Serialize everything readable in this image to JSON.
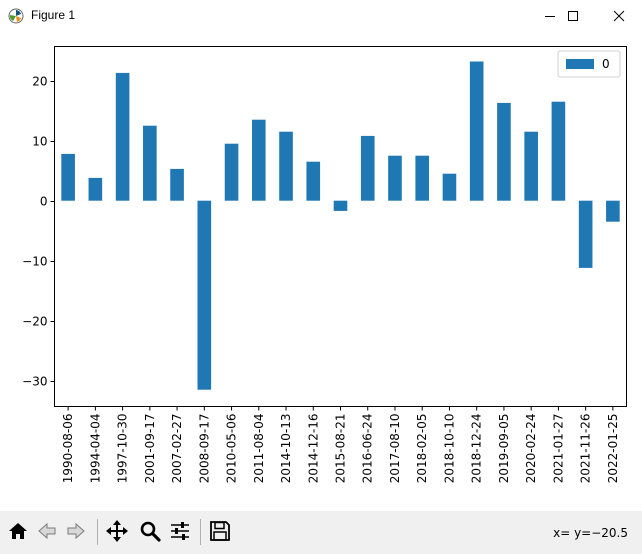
{
  "window": {
    "title": "Figure 1"
  },
  "toolbar": {
    "buttons": [
      {
        "name": "home-button",
        "icon": "home-icon"
      },
      {
        "name": "back-button",
        "icon": "back-arrow-icon"
      },
      {
        "name": "forward-button",
        "icon": "forward-arrow-icon"
      },
      {
        "name": "pan-button",
        "icon": "move-icon"
      },
      {
        "name": "zoom-button",
        "icon": "magnifier-icon"
      },
      {
        "name": "configure-subplots-button",
        "icon": "sliders-icon"
      },
      {
        "name": "save-button",
        "icon": "floppy-disk-icon"
      }
    ],
    "coords_text": "x= y=−20.5"
  },
  "colors": {
    "bar": "#1f77b4",
    "axis": "#000000",
    "background": "#ffffff",
    "toolbar": "#f0f0f0"
  },
  "chart_data": {
    "type": "bar",
    "categories": [
      "1990-08-06",
      "1994-04-04",
      "1997-10-30",
      "2001-09-17",
      "2007-02-27",
      "2008-09-17",
      "2010-05-06",
      "2011-08-04",
      "2014-10-13",
      "2014-12-16",
      "2015-08-21",
      "2016-06-24",
      "2017-08-10",
      "2018-02-05",
      "2018-10-10",
      "2018-12-24",
      "2019-09-05",
      "2020-02-24",
      "2021-01-27",
      "2021-11-26",
      "2022-01-25"
    ],
    "series": [
      {
        "name": "0",
        "values": [
          7.8,
          3.8,
          21.3,
          12.5,
          5.3,
          -31.5,
          9.5,
          13.5,
          11.5,
          6.5,
          -1.7,
          10.8,
          7.5,
          7.5,
          4.5,
          23.2,
          16.3,
          11.5,
          16.5,
          -11.2,
          -3.5
        ]
      }
    ],
    "yticks": [
      -30,
      -20,
      -10,
      0,
      10,
      20
    ],
    "ylim": [
      -34.3,
      25.7
    ],
    "xlabel": "",
    "ylabel": "",
    "title": "",
    "legend": "top-right",
    "grid": false
  }
}
